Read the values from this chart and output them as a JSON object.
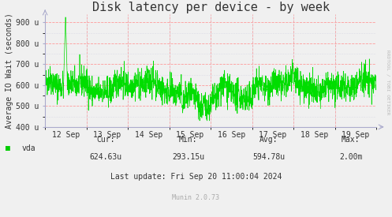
{
  "title": "Disk latency per device - by week",
  "ylabel": "Average IO Wait (seconds)",
  "background_color": "#f0f0f0",
  "plot_bg_color": "#f0f0f0",
  "grid_color_major": "#ff9999",
  "grid_color_minor": "#ccccdd",
  "line_color": "#00dd00",
  "ylim": [
    400,
    940
  ],
  "yticks": [
    400,
    500,
    600,
    700,
    800,
    900
  ],
  "ytick_labels": [
    "400 u",
    "500 u",
    "600 u",
    "700 u",
    "800 u",
    "900 u"
  ],
  "xtick_labels": [
    "12 Sep",
    "13 Sep",
    "14 Sep",
    "15 Sep",
    "16 Sep",
    "17 Sep",
    "18 Sep",
    "19 Sep"
  ],
  "legend_label": "vda",
  "legend_color": "#00cc00",
  "cur_val": "624.63u",
  "min_val": "293.15u",
  "avg_val": "594.78u",
  "max_val": "2.00m",
  "last_update": "Last update: Fri Sep 20 11:00:04 2024",
  "munin_version": "Munin 2.0.73",
  "rrdtool_label": "RRDTOOL / TOBI OETIKER",
  "title_fontsize": 11,
  "axis_label_fontsize": 7,
  "tick_fontsize": 7,
  "footer_fontsize": 7,
  "small_fontsize": 6
}
